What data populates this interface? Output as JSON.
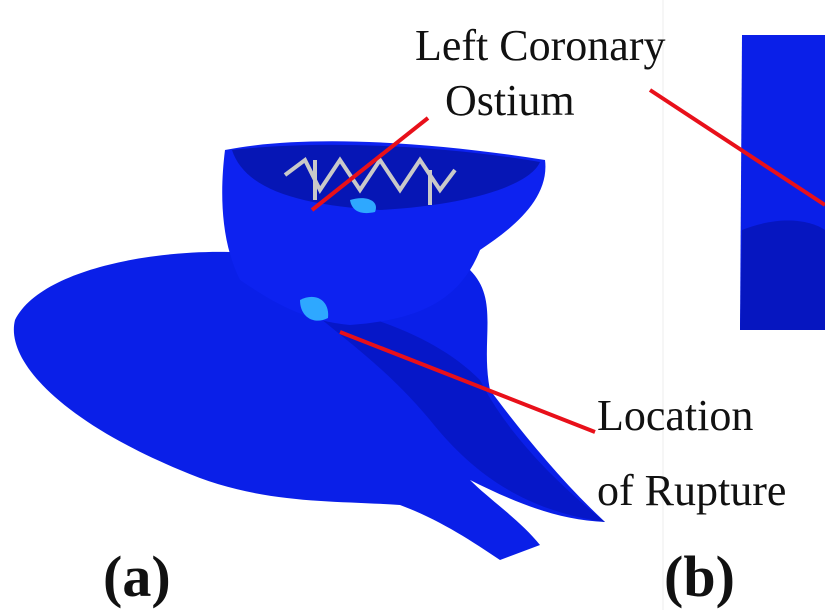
{
  "annotations": [
    {
      "lines": [
        "Left Coronary",
        "Ostium"
      ]
    },
    {
      "lines": [
        "Location",
        "of Rupture"
      ]
    }
  ],
  "panels": [
    {
      "label": "(a)"
    },
    {
      "label": "(b)"
    }
  ]
}
